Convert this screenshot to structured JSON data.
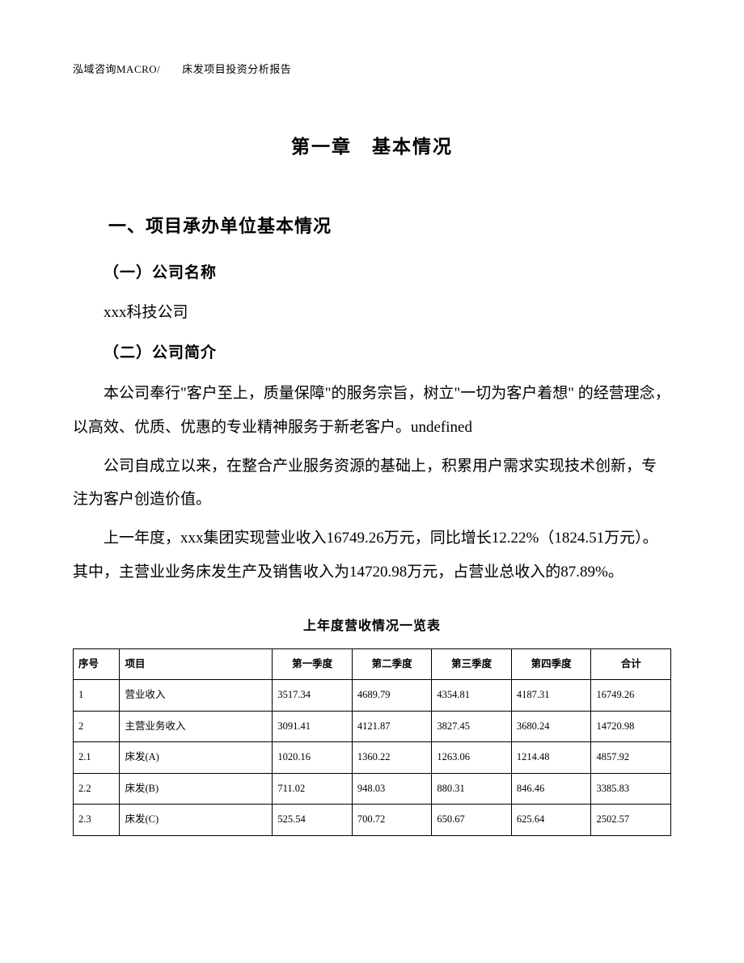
{
  "header": {
    "text": "泓域咨询MACRO/　　床发项目投资分析报告"
  },
  "chapter": {
    "title": "第一章　基本情况"
  },
  "section1": {
    "title": "一、项目承办单位基本情况",
    "sub1_title": "（一）公司名称",
    "sub1_body": "xxx科技公司",
    "sub2_title": "（二）公司简介",
    "sub2_body1": "本公司奉行\"客户至上，质量保障\"的服务宗旨，树立\"一切为客户着想\" 的经营理念，以高效、优质、优惠的专业精神服务于新老客户。undefined",
    "sub2_body2": "公司自成立以来，在整合产业服务资源的基础上，积累用户需求实现技术创新，专注为客户创造价值。",
    "sub2_body3": "上一年度，xxx集团实现营业收入16749.26万元，同比增长12.22%（1824.51万元）。其中，主营业业务床发生产及销售收入为14720.98万元，占营业总收入的87.89%。"
  },
  "table": {
    "title": "上年度营收情况一览表",
    "columns": [
      "序号",
      "项目",
      "第一季度",
      "第二季度",
      "第三季度",
      "第四季度",
      "合计"
    ],
    "rows": [
      [
        "1",
        "营业收入",
        "3517.34",
        "4689.79",
        "4354.81",
        "4187.31",
        "16749.26"
      ],
      [
        "2",
        "主营业务收入",
        "3091.41",
        "4121.87",
        "3827.45",
        "3680.24",
        "14720.98"
      ],
      [
        "2.1",
        "床发(A)",
        "1020.16",
        "1360.22",
        "1263.06",
        "1214.48",
        "4857.92"
      ],
      [
        "2.2",
        "床发(B)",
        "711.02",
        "948.03",
        "880.31",
        "846.46",
        "3385.83"
      ],
      [
        "2.3",
        "床发(C)",
        "525.54",
        "700.72",
        "650.67",
        "625.64",
        "2502.57"
      ]
    ]
  }
}
